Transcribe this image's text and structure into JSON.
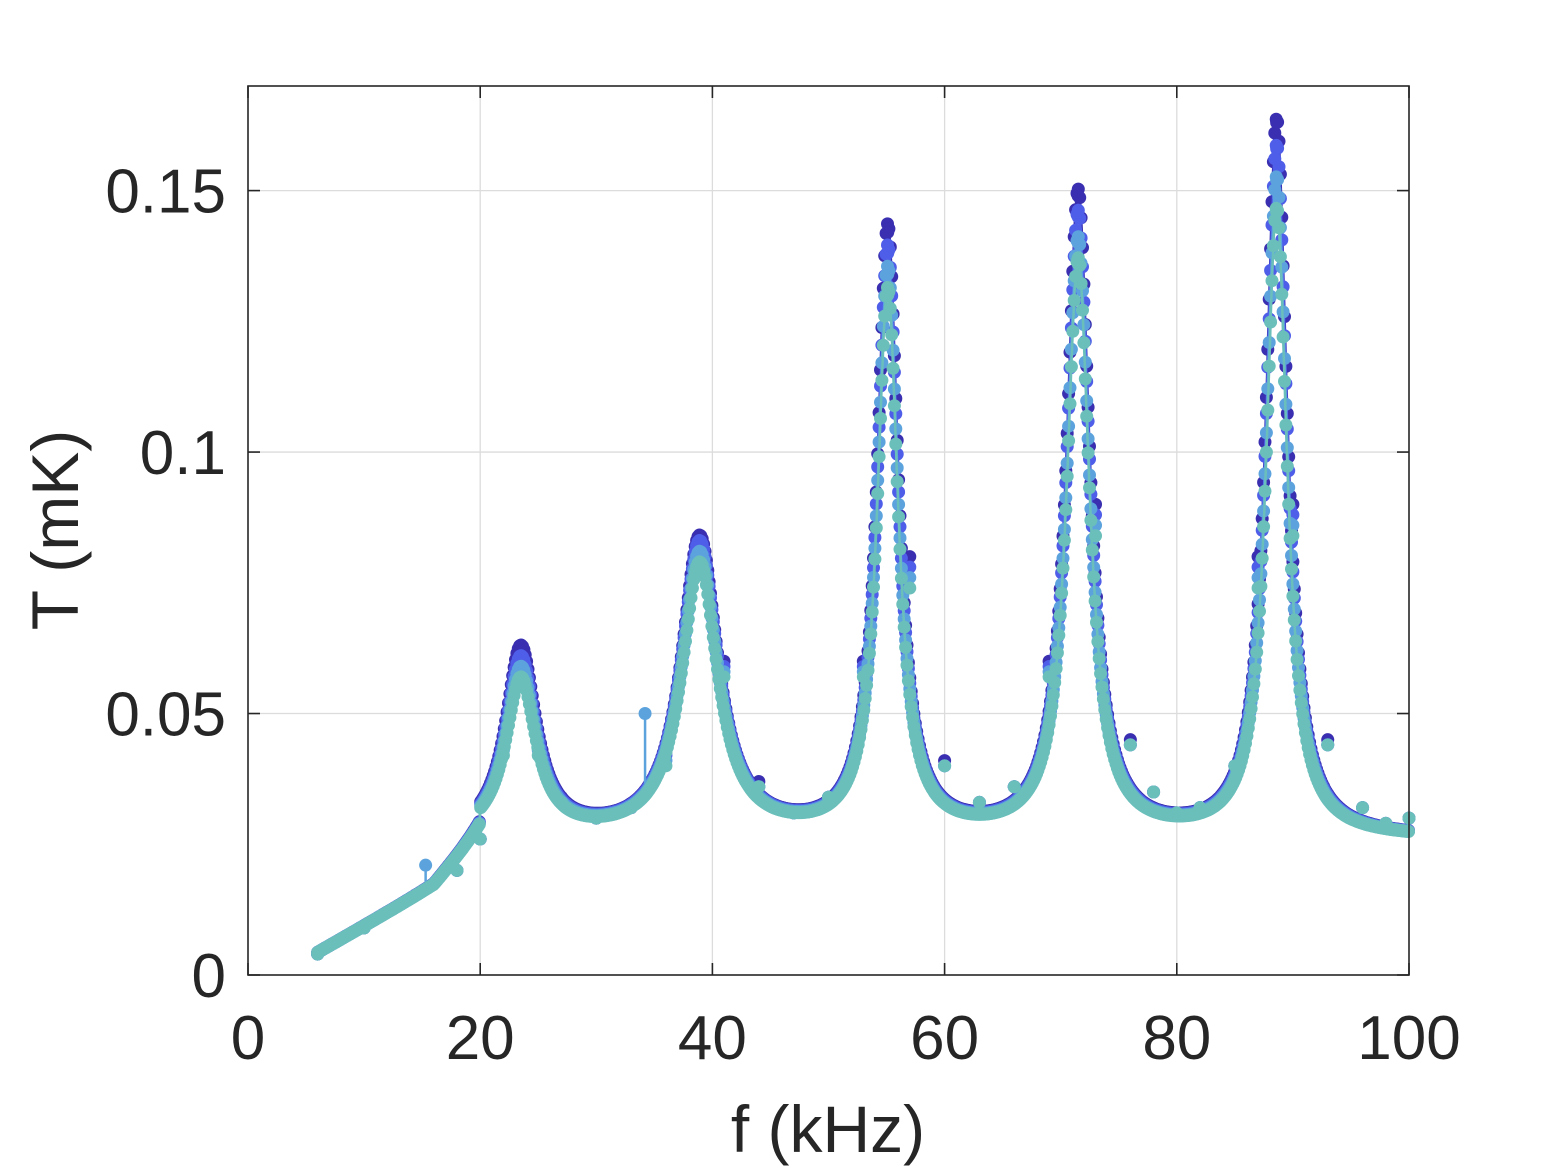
{
  "chart_data": {
    "type": "line",
    "title": "",
    "xlabel": "f (kHz)",
    "ylabel": "T (mK)",
    "xlim": [
      0,
      100
    ],
    "ylim": [
      0,
      0.17
    ],
    "xticks": [
      0,
      20,
      40,
      60,
      80,
      100
    ],
    "xtick_labels": [
      "0",
      "20",
      "40",
      "60",
      "80",
      "100"
    ],
    "yticks": [
      0,
      0.05,
      0.1,
      0.15
    ],
    "ytick_labels": [
      "0",
      "0.05",
      "0.1",
      "0.15"
    ],
    "grid": true,
    "legend": "none",
    "marker": "filled-circle",
    "resonances": [
      {
        "f": 23.5,
        "peak_T": [
          0.062,
          0.06,
          0.058,
          0.056
        ]
      },
      {
        "f": 38.9,
        "peak_T": [
          0.083,
          0.082,
          0.08,
          0.078
        ]
      },
      {
        "f": 55.1,
        "peak_T": [
          0.142,
          0.138,
          0.134,
          0.13
        ]
      },
      {
        "f": 71.5,
        "peak_T": [
          0.149,
          0.145,
          0.14,
          0.136
        ]
      },
      {
        "f": 88.6,
        "peak_T": [
          0.163,
          0.158,
          0.152,
          0.146
        ]
      }
    ],
    "series": [
      {
        "color": "#3a2fb0",
        "values_x": [
          6,
          10,
          15,
          18,
          20,
          22,
          23.5,
          25,
          27,
          30,
          33,
          36,
          38.9,
          41,
          44,
          47,
          50,
          53,
          55.1,
          57,
          60,
          63,
          66,
          69,
          71.5,
          73,
          76,
          78,
          80,
          82,
          85,
          87,
          88.6,
          90,
          93,
          96,
          98,
          100
        ],
        "values_y": [
          0.004,
          0.009,
          0.016,
          0.02,
          0.026,
          0.045,
          0.062,
          0.045,
          0.034,
          0.03,
          0.032,
          0.043,
          0.083,
          0.06,
          0.037,
          0.031,
          0.034,
          0.06,
          0.142,
          0.08,
          0.041,
          0.033,
          0.036,
          0.06,
          0.149,
          0.09,
          0.045,
          0.035,
          0.031,
          0.032,
          0.04,
          0.08,
          0.163,
          0.09,
          0.045,
          0.032,
          0.029,
          0.03
        ]
      },
      {
        "color": "#4f5ee8",
        "values_x": [
          6,
          10,
          15,
          18,
          20,
          22,
          23.5,
          25,
          27,
          30,
          33,
          36,
          38.9,
          41,
          44,
          47,
          50,
          53,
          55.1,
          57,
          60,
          63,
          66,
          69,
          71.5,
          73,
          76,
          78,
          80,
          82,
          85,
          87,
          88.6,
          90,
          93,
          96,
          98,
          100
        ],
        "values_y": [
          0.004,
          0.009,
          0.016,
          0.02,
          0.026,
          0.044,
          0.06,
          0.044,
          0.033,
          0.03,
          0.032,
          0.042,
          0.082,
          0.059,
          0.036,
          0.031,
          0.034,
          0.059,
          0.138,
          0.078,
          0.04,
          0.033,
          0.036,
          0.059,
          0.145,
          0.088,
          0.044,
          0.035,
          0.031,
          0.032,
          0.04,
          0.078,
          0.158,
          0.088,
          0.044,
          0.032,
          0.029,
          0.03
        ]
      },
      {
        "color": "#5ca3dd",
        "values_x": [
          6,
          10,
          15,
          18,
          20,
          22,
          23.5,
          25,
          27,
          30,
          33,
          36,
          38.9,
          41,
          44,
          47,
          50,
          53,
          55.1,
          57,
          60,
          63,
          66,
          69,
          71.5,
          73,
          76,
          78,
          80,
          82,
          85,
          87,
          88.6,
          90,
          93,
          96,
          98,
          100
        ],
        "values_y": [
          0.004,
          0.009,
          0.016,
          0.02,
          0.026,
          0.043,
          0.058,
          0.043,
          0.033,
          0.03,
          0.032,
          0.041,
          0.08,
          0.058,
          0.036,
          0.031,
          0.034,
          0.058,
          0.134,
          0.076,
          0.04,
          0.033,
          0.036,
          0.058,
          0.14,
          0.086,
          0.044,
          0.035,
          0.031,
          0.032,
          0.04,
          0.076,
          0.152,
          0.086,
          0.044,
          0.032,
          0.029,
          0.03
        ],
        "outliers": [
          {
            "x": 15.3,
            "y": 0.021
          },
          {
            "x": 34.2,
            "y": 0.05
          }
        ]
      },
      {
        "color": "#6bbfbb",
        "values_x": [
          6,
          10,
          15,
          18,
          20,
          22,
          23.5,
          25,
          27,
          30,
          33,
          36,
          38.9,
          41,
          44,
          47,
          50,
          53,
          55.1,
          57,
          60,
          63,
          66,
          69,
          71.5,
          73,
          76,
          78,
          80,
          82,
          85,
          87,
          88.6,
          90,
          93,
          96,
          98,
          100
        ],
        "values_y": [
          0.004,
          0.009,
          0.016,
          0.02,
          0.026,
          0.042,
          0.056,
          0.042,
          0.033,
          0.03,
          0.032,
          0.04,
          0.078,
          0.057,
          0.036,
          0.031,
          0.034,
          0.057,
          0.13,
          0.074,
          0.04,
          0.033,
          0.036,
          0.057,
          0.136,
          0.084,
          0.044,
          0.035,
          0.031,
          0.032,
          0.04,
          0.074,
          0.146,
          0.084,
          0.044,
          0.032,
          0.029,
          0.03
        ]
      }
    ]
  }
}
